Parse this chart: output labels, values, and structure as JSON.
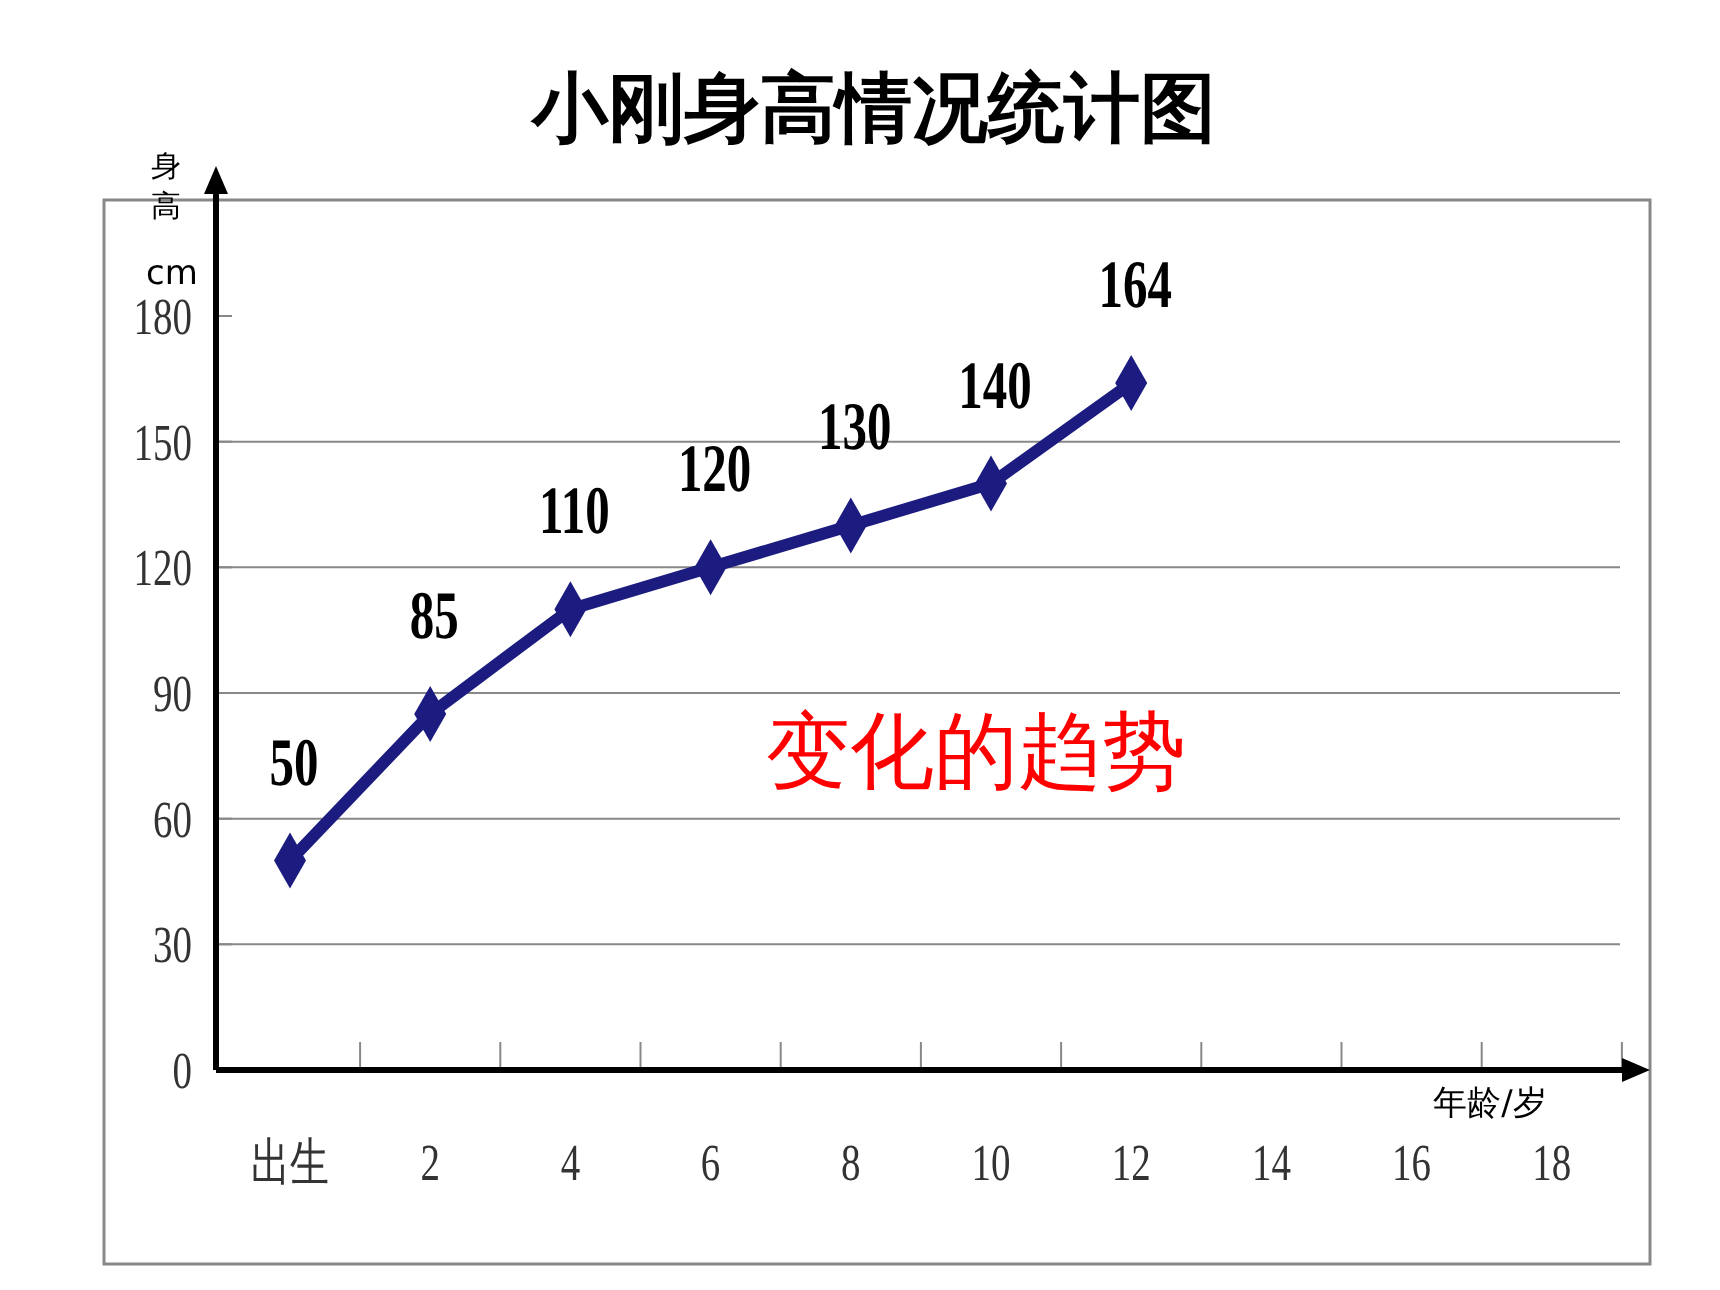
{
  "chart_data": {
    "type": "line",
    "title": "小刚身高情况统计图",
    "ylabel": "身高 cm",
    "xlabel": "年龄/岁",
    "categories": [
      "出生",
      "2",
      "4",
      "6",
      "8",
      "10",
      "12",
      "14",
      "16",
      "18"
    ],
    "series": [
      {
        "color": "#1c1c80",
        "values": [
          50,
          85,
          110,
          120,
          130,
          140,
          164,
          null,
          null,
          null
        ]
      }
    ],
    "ylim": [
      0,
      212
    ],
    "yticks": [
      0,
      30,
      60,
      90,
      120,
      150,
      180
    ],
    "grid": "y",
    "marker": "diamond",
    "line_style": "solid",
    "data_labels": true,
    "annotations": [
      "变化的趋势"
    ]
  }
}
